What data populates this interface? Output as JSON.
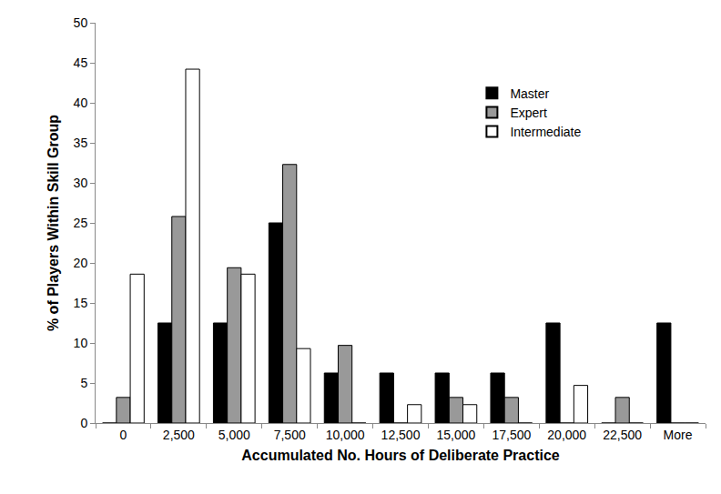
{
  "chart_data": {
    "type": "bar",
    "x_label": "Accumulated No. Hours of Deliberate Practice",
    "y_label": "% of Players Within Skill Group",
    "categories": [
      "0",
      "2,500",
      "5,000",
      "7,500",
      "10,000",
      "12,500",
      "15,000",
      "17,500",
      "20,000",
      "22,500",
      "More"
    ],
    "series": [
      {
        "name": "Master",
        "color": "#000000",
        "values": [
          0,
          12.5,
          12.5,
          25,
          6.25,
          6.25,
          6.25,
          6.25,
          12.5,
          0,
          12.5
        ]
      },
      {
        "name": "Expert",
        "color": "#999999",
        "values": [
          3.2,
          25.8,
          19.4,
          32.3,
          9.7,
          0,
          3.2,
          3.2,
          0,
          3.2,
          0
        ]
      },
      {
        "name": "Intermediate",
        "color": "#ffffff",
        "values": [
          18.6,
          44.2,
          18.6,
          9.3,
          0,
          2.3,
          2.3,
          0,
          4.7,
          0,
          0
        ]
      }
    ],
    "ylim": [
      0,
      50
    ],
    "yticks": [
      0,
      5,
      10,
      15,
      20,
      25,
      30,
      35,
      40,
      45,
      50
    ],
    "grid": false,
    "legend": "upper right"
  }
}
